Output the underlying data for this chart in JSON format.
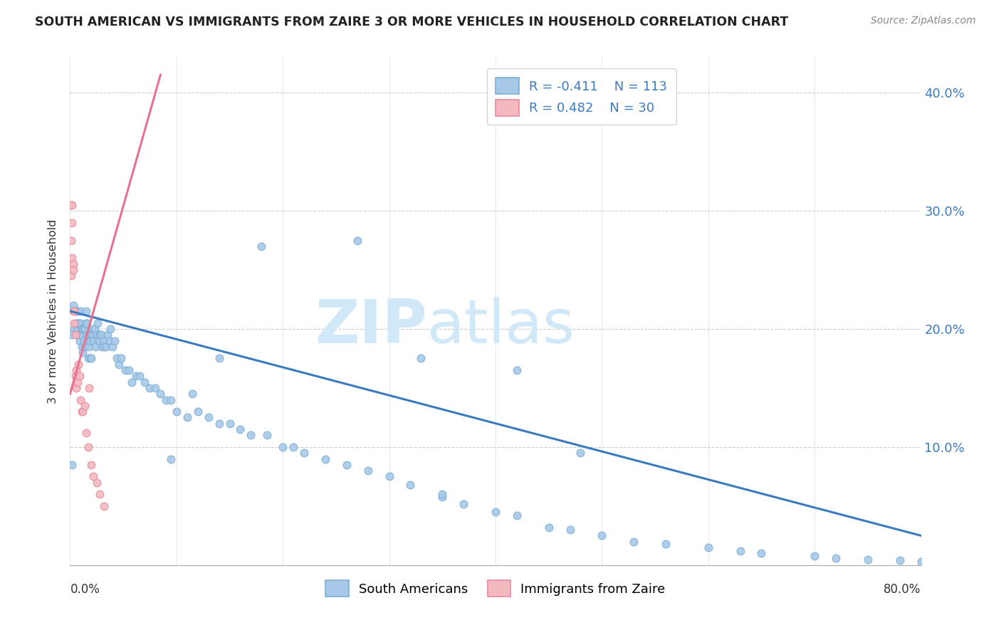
{
  "title": "SOUTH AMERICAN VS IMMIGRANTS FROM ZAIRE 3 OR MORE VEHICLES IN HOUSEHOLD CORRELATION CHART",
  "source": "Source: ZipAtlas.com",
  "ylabel": "3 or more Vehicles in Household",
  "yticks": [
    0.0,
    0.1,
    0.2,
    0.3,
    0.4
  ],
  "ytick_labels": [
    "",
    "10.0%",
    "20.0%",
    "30.0%",
    "40.0%"
  ],
  "xlim": [
    0.0,
    0.8
  ],
  "ylim": [
    0.0,
    0.43
  ],
  "legend_r1": "R = -0.411",
  "legend_n1": "N = 113",
  "legend_r2": "R = 0.482",
  "legend_n2": "N = 30",
  "blue_dot_color": "#a8c8e8",
  "blue_dot_edge": "#7aafd4",
  "pink_dot_color": "#f4b8c0",
  "pink_dot_edge": "#e88898",
  "blue_line_color": "#3a7abf",
  "pink_line_color": "#e87090",
  "watermark_color": "#d0e8f8",
  "blue_line_x": [
    0.0,
    0.8
  ],
  "blue_line_y": [
    0.215,
    0.025
  ],
  "pink_line_x": [
    0.0,
    0.085
  ],
  "pink_line_y": [
    0.145,
    0.415
  ],
  "blue_scatter_x": [
    0.002,
    0.003,
    0.004,
    0.005,
    0.005,
    0.006,
    0.006,
    0.007,
    0.007,
    0.007,
    0.008,
    0.008,
    0.009,
    0.009,
    0.01,
    0.01,
    0.01,
    0.011,
    0.011,
    0.012,
    0.012,
    0.013,
    0.013,
    0.014,
    0.014,
    0.015,
    0.015,
    0.016,
    0.016,
    0.017,
    0.018,
    0.018,
    0.019,
    0.019,
    0.02,
    0.02,
    0.021,
    0.022,
    0.022,
    0.023,
    0.024,
    0.025,
    0.026,
    0.027,
    0.028,
    0.029,
    0.03,
    0.031,
    0.032,
    0.034,
    0.035,
    0.037,
    0.038,
    0.04,
    0.042,
    0.044,
    0.046,
    0.048,
    0.052,
    0.055,
    0.058,
    0.062,
    0.065,
    0.07,
    0.075,
    0.08,
    0.085,
    0.09,
    0.095,
    0.1,
    0.11,
    0.115,
    0.12,
    0.13,
    0.14,
    0.15,
    0.16,
    0.17,
    0.185,
    0.2,
    0.21,
    0.22,
    0.24,
    0.26,
    0.28,
    0.3,
    0.32,
    0.35,
    0.37,
    0.4,
    0.42,
    0.45,
    0.47,
    0.5,
    0.53,
    0.56,
    0.6,
    0.63,
    0.65,
    0.7,
    0.72,
    0.75,
    0.78,
    0.8,
    0.002,
    0.35,
    0.48,
    0.27,
    0.33,
    0.42,
    0.14,
    0.18,
    0.095
  ],
  "blue_scatter_y": [
    0.085,
    0.22,
    0.2,
    0.205,
    0.215,
    0.195,
    0.215,
    0.2,
    0.205,
    0.215,
    0.195,
    0.205,
    0.19,
    0.205,
    0.195,
    0.205,
    0.215,
    0.185,
    0.2,
    0.18,
    0.2,
    0.19,
    0.2,
    0.185,
    0.2,
    0.205,
    0.215,
    0.195,
    0.205,
    0.175,
    0.185,
    0.195,
    0.175,
    0.19,
    0.175,
    0.195,
    0.195,
    0.19,
    0.2,
    0.2,
    0.185,
    0.195,
    0.205,
    0.19,
    0.195,
    0.195,
    0.185,
    0.19,
    0.185,
    0.185,
    0.195,
    0.19,
    0.2,
    0.185,
    0.19,
    0.175,
    0.17,
    0.175,
    0.165,
    0.165,
    0.155,
    0.16,
    0.16,
    0.155,
    0.15,
    0.15,
    0.145,
    0.14,
    0.14,
    0.13,
    0.125,
    0.145,
    0.13,
    0.125,
    0.12,
    0.12,
    0.115,
    0.11,
    0.11,
    0.1,
    0.1,
    0.095,
    0.09,
    0.085,
    0.08,
    0.075,
    0.068,
    0.058,
    0.052,
    0.045,
    0.042,
    0.032,
    0.03,
    0.025,
    0.02,
    0.018,
    0.015,
    0.012,
    0.01,
    0.008,
    0.006,
    0.005,
    0.004,
    0.003,
    0.195,
    0.06,
    0.095,
    0.275,
    0.175,
    0.165,
    0.175,
    0.27,
    0.09
  ],
  "pink_scatter_x": [
    0.001,
    0.001,
    0.001,
    0.002,
    0.002,
    0.002,
    0.003,
    0.003,
    0.003,
    0.004,
    0.004,
    0.005,
    0.005,
    0.006,
    0.006,
    0.007,
    0.008,
    0.009,
    0.01,
    0.011,
    0.012,
    0.014,
    0.015,
    0.017,
    0.018,
    0.02,
    0.022,
    0.025,
    0.028,
    0.032
  ],
  "pink_scatter_y": [
    0.305,
    0.275,
    0.245,
    0.29,
    0.26,
    0.305,
    0.255,
    0.215,
    0.25,
    0.205,
    0.215,
    0.195,
    0.16,
    0.165,
    0.15,
    0.155,
    0.17,
    0.16,
    0.14,
    0.13,
    0.13,
    0.135,
    0.112,
    0.1,
    0.15,
    0.085,
    0.075,
    0.07,
    0.06,
    0.05
  ]
}
